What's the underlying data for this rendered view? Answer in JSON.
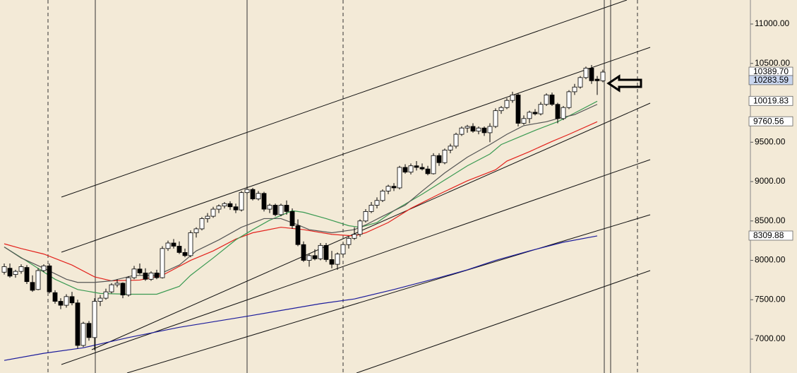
{
  "chart_data": {
    "type": "candlestick",
    "ylim": [
      6570,
      11305
    ],
    "yticks": [
      {
        "value": 11000,
        "label": "11000.00"
      },
      {
        "value": 10500,
        "label": "10500.00"
      },
      {
        "value": 10000,
        "label": "10000.00"
      },
      {
        "value": 9500,
        "label": "9500.00"
      },
      {
        "value": 9000,
        "label": "9000.00"
      },
      {
        "value": 8500,
        "label": "8500.00"
      },
      {
        "value": 8000,
        "label": "8000.00"
      },
      {
        "value": 7500,
        "label": "7500.00"
      },
      {
        "value": 7000,
        "label": "7000.00"
      }
    ],
    "open": [
      7850,
      7900,
      7820,
      7860,
      7910,
      7720,
      7630,
      7870,
      7930,
      7590,
      7480,
      7430,
      7540,
      7460,
      6920,
      7200,
      7020,
      7480,
      7520,
      7600,
      7690,
      7710,
      7560,
      7780,
      7890,
      7840,
      7760,
      7840,
      7780,
      8150,
      8220,
      8180,
      8100,
      8060,
      8350,
      8400,
      8530,
      8560,
      8650,
      8690,
      8720,
      8680,
      8640,
      8860,
      8900,
      8780,
      8850,
      8650,
      8700,
      8580,
      8700,
      8620,
      8440,
      8200,
      8000,
      8060,
      8020,
      8190,
      8010,
      7950,
      8080,
      8200,
      8280,
      8330,
      8500,
      8620,
      8700,
      8760,
      8880,
      8940,
      8920,
      9180,
      9120,
      9200,
      9180,
      9160,
      9100,
      9330,
      9240,
      9400,
      9450,
      9600,
      9680,
      9700,
      9640,
      9680,
      9620,
      9700,
      9900,
      9940,
      10030,
      10100,
      9740,
      9800,
      9880,
      9860,
      9980,
      10100,
      9980,
      9800,
      9940,
      10140,
      10200,
      10320,
      10440,
      10300,
      10280
    ],
    "high": [
      7960,
      7960,
      7880,
      7950,
      7940,
      7810,
      7900,
      7950,
      7960,
      7620,
      7520,
      7570,
      7600,
      7500,
      7220,
      7230,
      7520,
      7560,
      7640,
      7710,
      7760,
      7720,
      7800,
      7930,
      7960,
      7900,
      7860,
      7880,
      8180,
      8250,
      8270,
      8240,
      8150,
      8380,
      8420,
      8550,
      8600,
      8680,
      8710,
      8740,
      8750,
      8720,
      8880,
      8940,
      8920,
      8880,
      8870,
      8720,
      8720,
      8720,
      8760,
      8660,
      8520,
      8240,
      8080,
      8140,
      8220,
      8220,
      8120,
      8100,
      8220,
      8300,
      8420,
      8520,
      8650,
      8740,
      8800,
      8900,
      8960,
      8980,
      9200,
      9220,
      9230,
      9260,
      9230,
      9200,
      9360,
      9360,
      9420,
      9480,
      9620,
      9700,
      9720,
      9740,
      9700,
      9700,
      9740,
      9930,
      9960,
      10060,
      10140,
      10120,
      9840,
      9900,
      9920,
      10010,
      10120,
      10130,
      10000,
      9960,
      10160,
      10240,
      10340,
      10460,
      10480,
      10340,
      10420
    ],
    "low": [
      7820,
      7780,
      7780,
      7830,
      7700,
      7600,
      7620,
      7850,
      7580,
      7450,
      7380,
      7400,
      7430,
      6880,
      6900,
      6980,
      6860,
      7420,
      7500,
      7580,
      7660,
      7520,
      7540,
      7760,
      7820,
      7740,
      7740,
      7760,
      7770,
      8120,
      8150,
      8080,
      8040,
      8040,
      8290,
      8380,
      8480,
      8540,
      8600,
      8660,
      8640,
      8600,
      8620,
      8840,
      8760,
      8760,
      8620,
      8600,
      8560,
      8560,
      8580,
      8400,
      8180,
      7980,
      7920,
      8000,
      8000,
      7980,
      7900,
      7880,
      8050,
      8150,
      8260,
      8300,
      8480,
      8600,
      8660,
      8740,
      8840,
      8880,
      8900,
      9100,
      9090,
      9140,
      9140,
      9080,
      9090,
      9200,
      9220,
      9360,
      9420,
      9580,
      9620,
      9620,
      9600,
      9580,
      9500,
      9680,
      9860,
      9920,
      10000,
      9700,
      9720,
      9740,
      9840,
      9840,
      9960,
      9960,
      9740,
      9780,
      9920,
      10100,
      10180,
      10300,
      10240,
      10100,
      10260
    ],
    "close": [
      7920,
      7800,
      7860,
      7920,
      7730,
      7620,
      7870,
      7930,
      7600,
      7480,
      7430,
      7540,
      7460,
      6920,
      7200,
      7020,
      7480,
      7520,
      7600,
      7690,
      7710,
      7560,
      7780,
      7890,
      7840,
      7760,
      7840,
      7780,
      8150,
      8220,
      8180,
      8100,
      8060,
      8350,
      8400,
      8530,
      8560,
      8650,
      8690,
      8720,
      8680,
      8640,
      8860,
      8900,
      8780,
      8850,
      8650,
      8700,
      8580,
      8700,
      8620,
      8440,
      8200,
      8000,
      8060,
      8020,
      8190,
      8010,
      7950,
      8080,
      8200,
      8280,
      8330,
      8500,
      8620,
      8700,
      8760,
      8880,
      8940,
      8920,
      9180,
      9120,
      9200,
      9180,
      9160,
      9100,
      9330,
      9240,
      9400,
      9450,
      9600,
      9680,
      9700,
      9640,
      9680,
      9620,
      9700,
      9900,
      9940,
      10030,
      10100,
      9740,
      9800,
      9880,
      9860,
      9980,
      10100,
      9980,
      9800,
      9940,
      10140,
      10200,
      10320,
      10440,
      10280,
      10280,
      10390
    ],
    "series": [
      {
        "color": "#1c1c9c",
        "x": [
          0,
          7,
          14,
          22,
          31,
          43,
          56,
          62,
          69,
          77,
          82,
          87,
          93,
          99,
          105
        ],
        "values": [
          6730,
          6820,
          6890,
          7020,
          7150,
          7290,
          7450,
          7510,
          7630,
          7780,
          7880,
          8000,
          8120,
          8230,
          8310
        ]
      },
      {
        "color": "#e3221c",
        "x": [
          0,
          3,
          7,
          12,
          16,
          19,
          24,
          28,
          33,
          37,
          41,
          44,
          49,
          53,
          58,
          62,
          64,
          68,
          72,
          77,
          82,
          87,
          89,
          93,
          97,
          100,
          105
        ],
        "values": [
          8210,
          8150,
          8080,
          7940,
          7790,
          7740,
          7750,
          7810,
          8000,
          8120,
          8270,
          8350,
          8420,
          8390,
          8330,
          8310,
          8350,
          8480,
          8660,
          8840,
          9010,
          9150,
          9260,
          9380,
          9510,
          9600,
          9760
        ]
      },
      {
        "color": "#3a9a52",
        "x": [
          0,
          4,
          9,
          13,
          17,
          22,
          27,
          31,
          33,
          37,
          41,
          44,
          47,
          51,
          53,
          57,
          61,
          63,
          66,
          69,
          74,
          78,
          82,
          86,
          88,
          91,
          94,
          98,
          101,
          105
        ],
        "values": [
          8170,
          7990,
          7760,
          7630,
          7580,
          7570,
          7570,
          7670,
          7810,
          8030,
          8260,
          8390,
          8510,
          8630,
          8610,
          8530,
          8440,
          8420,
          8480,
          8630,
          8840,
          9020,
          9200,
          9350,
          9470,
          9560,
          9650,
          9760,
          9870,
          10020
        ]
      },
      {
        "color": "#555555",
        "x": [
          0,
          3,
          7,
          11,
          13,
          16,
          19,
          23,
          27,
          31,
          34,
          38,
          42,
          46,
          49,
          52,
          54,
          58,
          62,
          64,
          67,
          71,
          74,
          78,
          82,
          86,
          89,
          92,
          96,
          98,
          101,
          105
        ],
        "values": [
          8170,
          8030,
          7900,
          7760,
          7720,
          7720,
          7740,
          7810,
          7810,
          7940,
          8120,
          8260,
          8420,
          8530,
          8530,
          8450,
          8390,
          8350,
          8390,
          8450,
          8560,
          8700,
          8880,
          9110,
          9310,
          9470,
          9600,
          9710,
          9760,
          9800,
          9850,
          9980
        ]
      }
    ],
    "price_labels": [
      {
        "value": 10389.7,
        "label": "10389.70"
      },
      {
        "value": 10283.59,
        "label": "10283.59",
        "highlight": true
      },
      {
        "value": 10019.83,
        "label": "10019.83"
      },
      {
        "value": 9760.56,
        "label": "9760.56"
      },
      {
        "value": 8309.88,
        "label": "8309.88"
      }
    ]
  }
}
